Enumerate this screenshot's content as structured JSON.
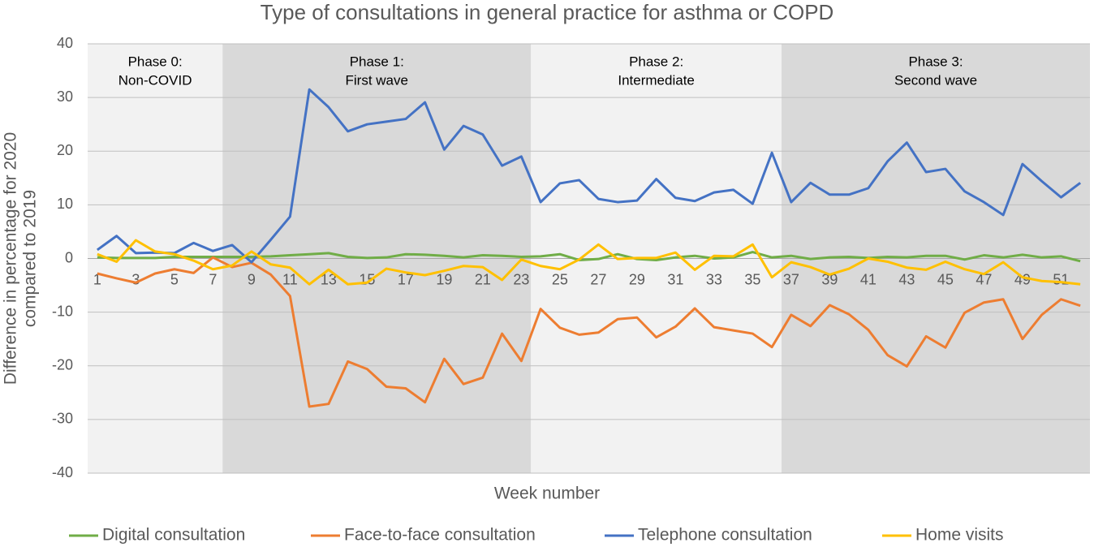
{
  "chart_data": {
    "type": "line",
    "title": "Type of consultations in general practice for asthma or COPD",
    "ylabel": [
      "Difference in percentage for 2020",
      "compared to 2019"
    ],
    "xlabel": "Week number",
    "categories": [
      1,
      null,
      3,
      null,
      5,
      null,
      7,
      null,
      9,
      null,
      11,
      null,
      13,
      null,
      15,
      null,
      17,
      null,
      19,
      null,
      21,
      null,
      23,
      null,
      25,
      null,
      27,
      null,
      29,
      null,
      31,
      null,
      33,
      null,
      35,
      null,
      37,
      null,
      39,
      null,
      41,
      null,
      43,
      null,
      45,
      null,
      47,
      null,
      49,
      null,
      51,
      null
    ],
    "ylim": [
      -40,
      40
    ],
    "yticks": [
      -40,
      -30,
      -20,
      -10,
      0,
      10,
      20,
      30,
      40
    ],
    "grid": true,
    "legend": "bottom",
    "phases": [
      {
        "lines": [
          "Phase 0:",
          "Non-COVID"
        ],
        "start_week": 1,
        "end_week": 7,
        "color": "#f2f2f2"
      },
      {
        "lines": [
          "Phase 1:",
          "First wave"
        ],
        "start_week": 8,
        "end_week": 23,
        "color": "#d9d9d9"
      },
      {
        "lines": [
          "Phase 2:",
          "Intermediate"
        ],
        "start_week": 24,
        "end_week": 36,
        "color": "#f2f2f2"
      },
      {
        "lines": [
          "Phase 3:",
          "Second wave"
        ],
        "start_week": 37,
        "end_week": 52,
        "color": "#d9d9d9"
      }
    ],
    "series": [
      {
        "name": "Digital consultation",
        "color": "#70ad47",
        "values": [
          0.2,
          0.1,
          0.1,
          0.1,
          0.3,
          0.3,
          0.3,
          0.3,
          0.3,
          0.4,
          0.6,
          0.8,
          1.0,
          0.3,
          0.1,
          0.2,
          0.8,
          0.7,
          0.5,
          0.2,
          0.6,
          0.5,
          0.3,
          0.4,
          0.8,
          -0.3,
          -0.1,
          0.8,
          -0.1,
          -0.3,
          0.2,
          0.5,
          0.0,
          0.2,
          1.2,
          0.2,
          0.5,
          -0.1,
          0.2,
          0.3,
          0.1,
          0.3,
          0.2,
          0.5,
          0.5,
          -0.2,
          0.6,
          0.2,
          0.7,
          0.2,
          0.4,
          -0.5
        ]
      },
      {
        "name": "Face-to-face consultation",
        "color": "#ed7d31",
        "values": [
          -2.8,
          -3.7,
          -4.5,
          -2.8,
          -2.0,
          -2.7,
          0.2,
          -1.6,
          -0.8,
          -3.0,
          -7.0,
          -27.6,
          -27.1,
          -19.2,
          -20.6,
          -23.9,
          -24.2,
          -26.8,
          -18.7,
          -23.4,
          -22.2,
          -14.0,
          -19.1,
          -9.4,
          -12.9,
          -14.2,
          -13.8,
          -11.3,
          -11.0,
          -14.7,
          -12.7,
          -9.3,
          -12.8,
          -13.4,
          -14.0,
          -16.5,
          -10.5,
          -12.6,
          -8.7,
          -10.4,
          -13.3,
          -18.0,
          -20.1,
          -14.5,
          -16.6,
          -10.1,
          -8.2,
          -7.6,
          -15.0,
          -10.5,
          -7.6,
          -8.8
        ]
      },
      {
        "name": "Telephone consultation",
        "color": "#4472c4",
        "values": [
          1.6,
          4.2,
          1.0,
          1.1,
          1.0,
          2.9,
          1.4,
          2.5,
          -0.7,
          3.5,
          7.8,
          31.5,
          28.2,
          23.7,
          25.0,
          25.5,
          26.0,
          29.1,
          20.3,
          24.7,
          23.1,
          17.3,
          19.0,
          10.5,
          14.0,
          14.6,
          11.1,
          10.5,
          10.8,
          14.8,
          11.3,
          10.7,
          12.3,
          12.8,
          10.2,
          19.7,
          10.5,
          14.1,
          11.9,
          11.9,
          13.1,
          18.1,
          21.6,
          16.1,
          16.7,
          12.5,
          10.5,
          8.1,
          17.6,
          14.4,
          11.4,
          14.1
        ]
      },
      {
        "name": "Home visits",
        "color": "#ffc000",
        "values": [
          0.8,
          -0.6,
          3.4,
          1.3,
          0.8,
          -0.4,
          -2.0,
          -1.3,
          1.3,
          -1.1,
          -1.7,
          -4.8,
          -2.1,
          -4.8,
          -4.5,
          -1.9,
          -2.6,
          -3.1,
          -2.3,
          -1.4,
          -1.6,
          -4.0,
          -0.2,
          -1.4,
          -2.0,
          -0.2,
          2.6,
          -0.1,
          0.1,
          0.1,
          1.1,
          -2.1,
          0.5,
          0.4,
          2.6,
          -3.5,
          -0.7,
          -1.6,
          -3.0,
          -1.9,
          0.0,
          -0.6,
          -1.7,
          -2.1,
          -0.6,
          -2.0,
          -2.9,
          -0.7,
          -3.5,
          -4.2,
          -4.4,
          -4.8
        ]
      }
    ]
  }
}
